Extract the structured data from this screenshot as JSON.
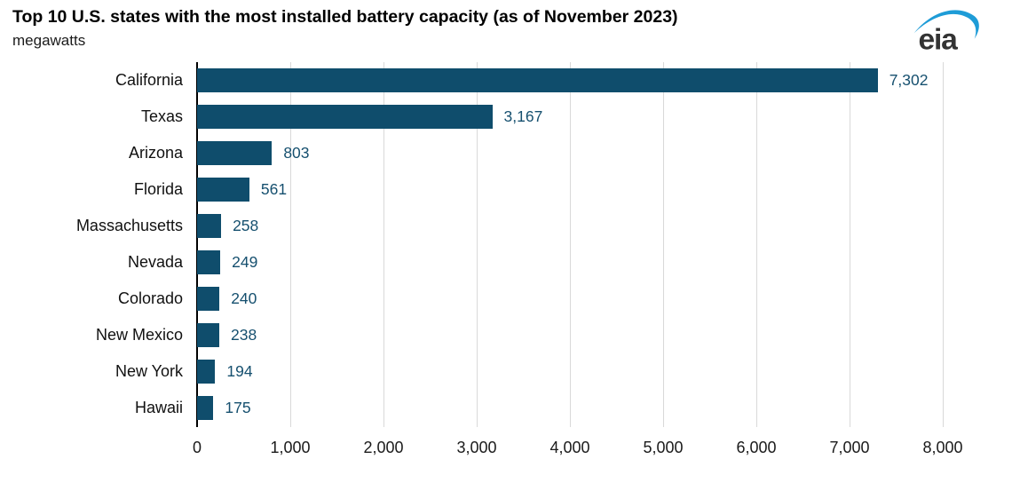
{
  "header": {
    "title": "Top 10 U.S. states with the most installed battery capacity (as of November 2023)",
    "subtitle": "megawatts"
  },
  "logo": {
    "name": "eia-logo",
    "text": "eia"
  },
  "chart_data": {
    "type": "bar",
    "orientation": "horizontal",
    "title": "Top 10 U.S. states with the most installed battery capacity (as of November 2023)",
    "ylabel": "",
    "xlabel": "megawatts",
    "categories": [
      "California",
      "Texas",
      "Arizona",
      "Florida",
      "Massachusetts",
      "Nevada",
      "Colorado",
      "New Mexico",
      "New York",
      "Hawaii"
    ],
    "values": [
      7302,
      3167,
      803,
      561,
      258,
      249,
      240,
      238,
      194,
      175
    ],
    "value_labels": [
      "7,302",
      "3,167",
      "803",
      "561",
      "258",
      "249",
      "240",
      "238",
      "194",
      "175"
    ],
    "xlim": [
      0,
      8000
    ],
    "xticks": [
      0,
      1000,
      2000,
      3000,
      4000,
      5000,
      6000,
      7000,
      8000
    ],
    "xtick_labels": [
      "0",
      "1,000",
      "2,000",
      "3,000",
      "4,000",
      "5,000",
      "6,000",
      "7,000",
      "8,000"
    ],
    "grid": true,
    "legend_position": "none",
    "colors": {
      "bar": "#0f4d6c",
      "value_label": "#16506f",
      "gridline": "#d9d9d9",
      "axis_line": "#000000",
      "logo_text": "#333333",
      "logo_swoosh": "#1e9cd7"
    }
  }
}
